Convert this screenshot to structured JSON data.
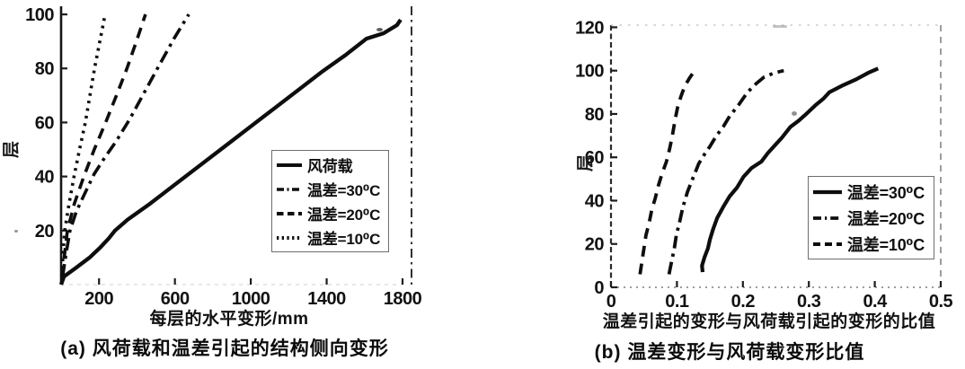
{
  "page": {
    "background": "#ffffff",
    "ink": "#0e0e0e"
  },
  "chart_data": [
    {
      "id": "a",
      "type": "line",
      "caption": "(a) 风荷载和温差引起的结构侧向变形",
      "xlabel": "每层的水平变形/mm",
      "ylabel": "层",
      "xlim": [
        0,
        1800
      ],
      "ylim": [
        0,
        103
      ],
      "xticks": [
        200,
        600,
        1000,
        1400,
        1800
      ],
      "yticks": [
        20,
        40,
        60,
        80,
        100
      ],
      "grid": false,
      "legend_position": "inside-right-middle",
      "series": [
        {
          "name": "风荷载",
          "style": "solid",
          "points": [
            [
              0,
              0
            ],
            [
              15,
              3
            ],
            [
              75,
              6
            ],
            [
              150,
              10
            ],
            [
              210,
              14
            ],
            [
              250,
              17
            ],
            [
              284,
              20
            ],
            [
              350,
              24
            ],
            [
              470,
              30
            ],
            [
              600,
              37
            ],
            [
              730,
              44
            ],
            [
              860,
              51
            ],
            [
              990,
              58
            ],
            [
              1120,
              65
            ],
            [
              1250,
              72
            ],
            [
              1380,
              79
            ],
            [
              1500,
              85
            ],
            [
              1610,
              91
            ],
            [
              1700,
              93
            ],
            [
              1770,
              96
            ],
            [
              1790,
              98
            ]
          ]
        },
        {
          "name": "温差=30⁰C",
          "style": "dashdot",
          "points": [
            [
              8,
              3
            ],
            [
              25,
              11
            ],
            [
              47,
              20
            ],
            [
              80,
              27
            ],
            [
              120,
              33
            ],
            [
              175,
              41
            ],
            [
              230,
              47
            ],
            [
              290,
              53
            ],
            [
              360,
              61
            ],
            [
              430,
              70
            ],
            [
              516,
              81
            ],
            [
              595,
              91
            ],
            [
              673,
              100
            ]
          ]
        },
        {
          "name": "温差=20⁰C",
          "style": "dashed",
          "points": [
            [
              6,
              3
            ],
            [
              18,
              11
            ],
            [
              33,
              20
            ],
            [
              70,
              30
            ],
            [
              120,
              40
            ],
            [
              175,
              50
            ],
            [
              235,
              60
            ],
            [
              292,
              70
            ],
            [
              347,
              80
            ],
            [
              397,
              90
            ],
            [
              445,
              100
            ]
          ]
        },
        {
          "name": "温差=10⁰C",
          "style": "dotted",
          "points": [
            [
              4,
              3
            ],
            [
              10,
              11
            ],
            [
              19,
              20
            ],
            [
              42,
              30
            ],
            [
              68,
              40
            ],
            [
              97,
              50
            ],
            [
              128,
              60
            ],
            [
              152,
              70
            ],
            [
              176,
              80
            ],
            [
              204,
              90
            ],
            [
              232,
              100
            ]
          ]
        }
      ]
    },
    {
      "id": "b",
      "type": "line",
      "caption": "(b) 温差变形与风荷载变形比值",
      "xlabel": "温差引起的变形与风荷载引起的变形的比值",
      "ylabel": "层",
      "xlim": [
        0,
        0.5
      ],
      "ylim": [
        0,
        121
      ],
      "xticks": [
        0,
        0.1,
        0.2,
        0.3,
        0.4,
        0.5
      ],
      "yticks": [
        0,
        20,
        40,
        60,
        80,
        100,
        120
      ],
      "grid": false,
      "legend_position": "inside-right-lower",
      "series": [
        {
          "name": "温差=30⁰C",
          "style": "solid",
          "points": [
            [
              0.139,
              7
            ],
            [
              0.138,
              10
            ],
            [
              0.142,
              14
            ],
            [
              0.147,
              18
            ],
            [
              0.15,
              22
            ],
            [
              0.155,
              27
            ],
            [
              0.161,
              32
            ],
            [
              0.17,
              37
            ],
            [
              0.18,
              42
            ],
            [
              0.191,
              46
            ],
            [
              0.201,
              51
            ],
            [
              0.213,
              55
            ],
            [
              0.228,
              58
            ],
            [
              0.238,
              62
            ],
            [
              0.25,
              66
            ],
            [
              0.259,
              69
            ],
            [
              0.272,
              74
            ],
            [
              0.285,
              77
            ],
            [
              0.296,
              80
            ],
            [
              0.31,
              84
            ],
            [
              0.322,
              87
            ],
            [
              0.331,
              90
            ],
            [
              0.35,
              93
            ],
            [
              0.372,
              96
            ],
            [
              0.39,
              99
            ],
            [
              0.405,
              101
            ]
          ]
        },
        {
          "name": "温差=20⁰C",
          "style": "dashdot",
          "points": [
            [
              0.088,
              6
            ],
            [
              0.092,
              12
            ],
            [
              0.096,
              18
            ],
            [
              0.099,
              24
            ],
            [
              0.104,
              30
            ],
            [
              0.109,
              37
            ],
            [
              0.116,
              44
            ],
            [
              0.125,
              51
            ],
            [
              0.133,
              57
            ],
            [
              0.143,
              62
            ],
            [
              0.15,
              65
            ],
            [
              0.16,
              70
            ],
            [
              0.17,
              74
            ],
            [
              0.18,
              79
            ],
            [
              0.193,
              84
            ],
            [
              0.207,
              90
            ],
            [
              0.22,
              94
            ],
            [
              0.232,
              97
            ],
            [
              0.248,
              99
            ],
            [
              0.262,
              100
            ]
          ]
        },
        {
          "name": "温差=10⁰C",
          "style": "dashed",
          "points": [
            [
              0.044,
              6
            ],
            [
              0.047,
              12
            ],
            [
              0.05,
              18
            ],
            [
              0.053,
              24
            ],
            [
              0.058,
              30
            ],
            [
              0.062,
              36
            ],
            [
              0.067,
              41
            ],
            [
              0.072,
              47
            ],
            [
              0.077,
              52
            ],
            [
              0.084,
              58
            ],
            [
              0.089,
              64
            ],
            [
              0.093,
              70
            ],
            [
              0.097,
              77
            ],
            [
              0.101,
              83
            ],
            [
              0.106,
              88
            ],
            [
              0.112,
              93
            ],
            [
              0.12,
              97
            ],
            [
              0.129,
              101
            ]
          ]
        }
      ]
    }
  ]
}
